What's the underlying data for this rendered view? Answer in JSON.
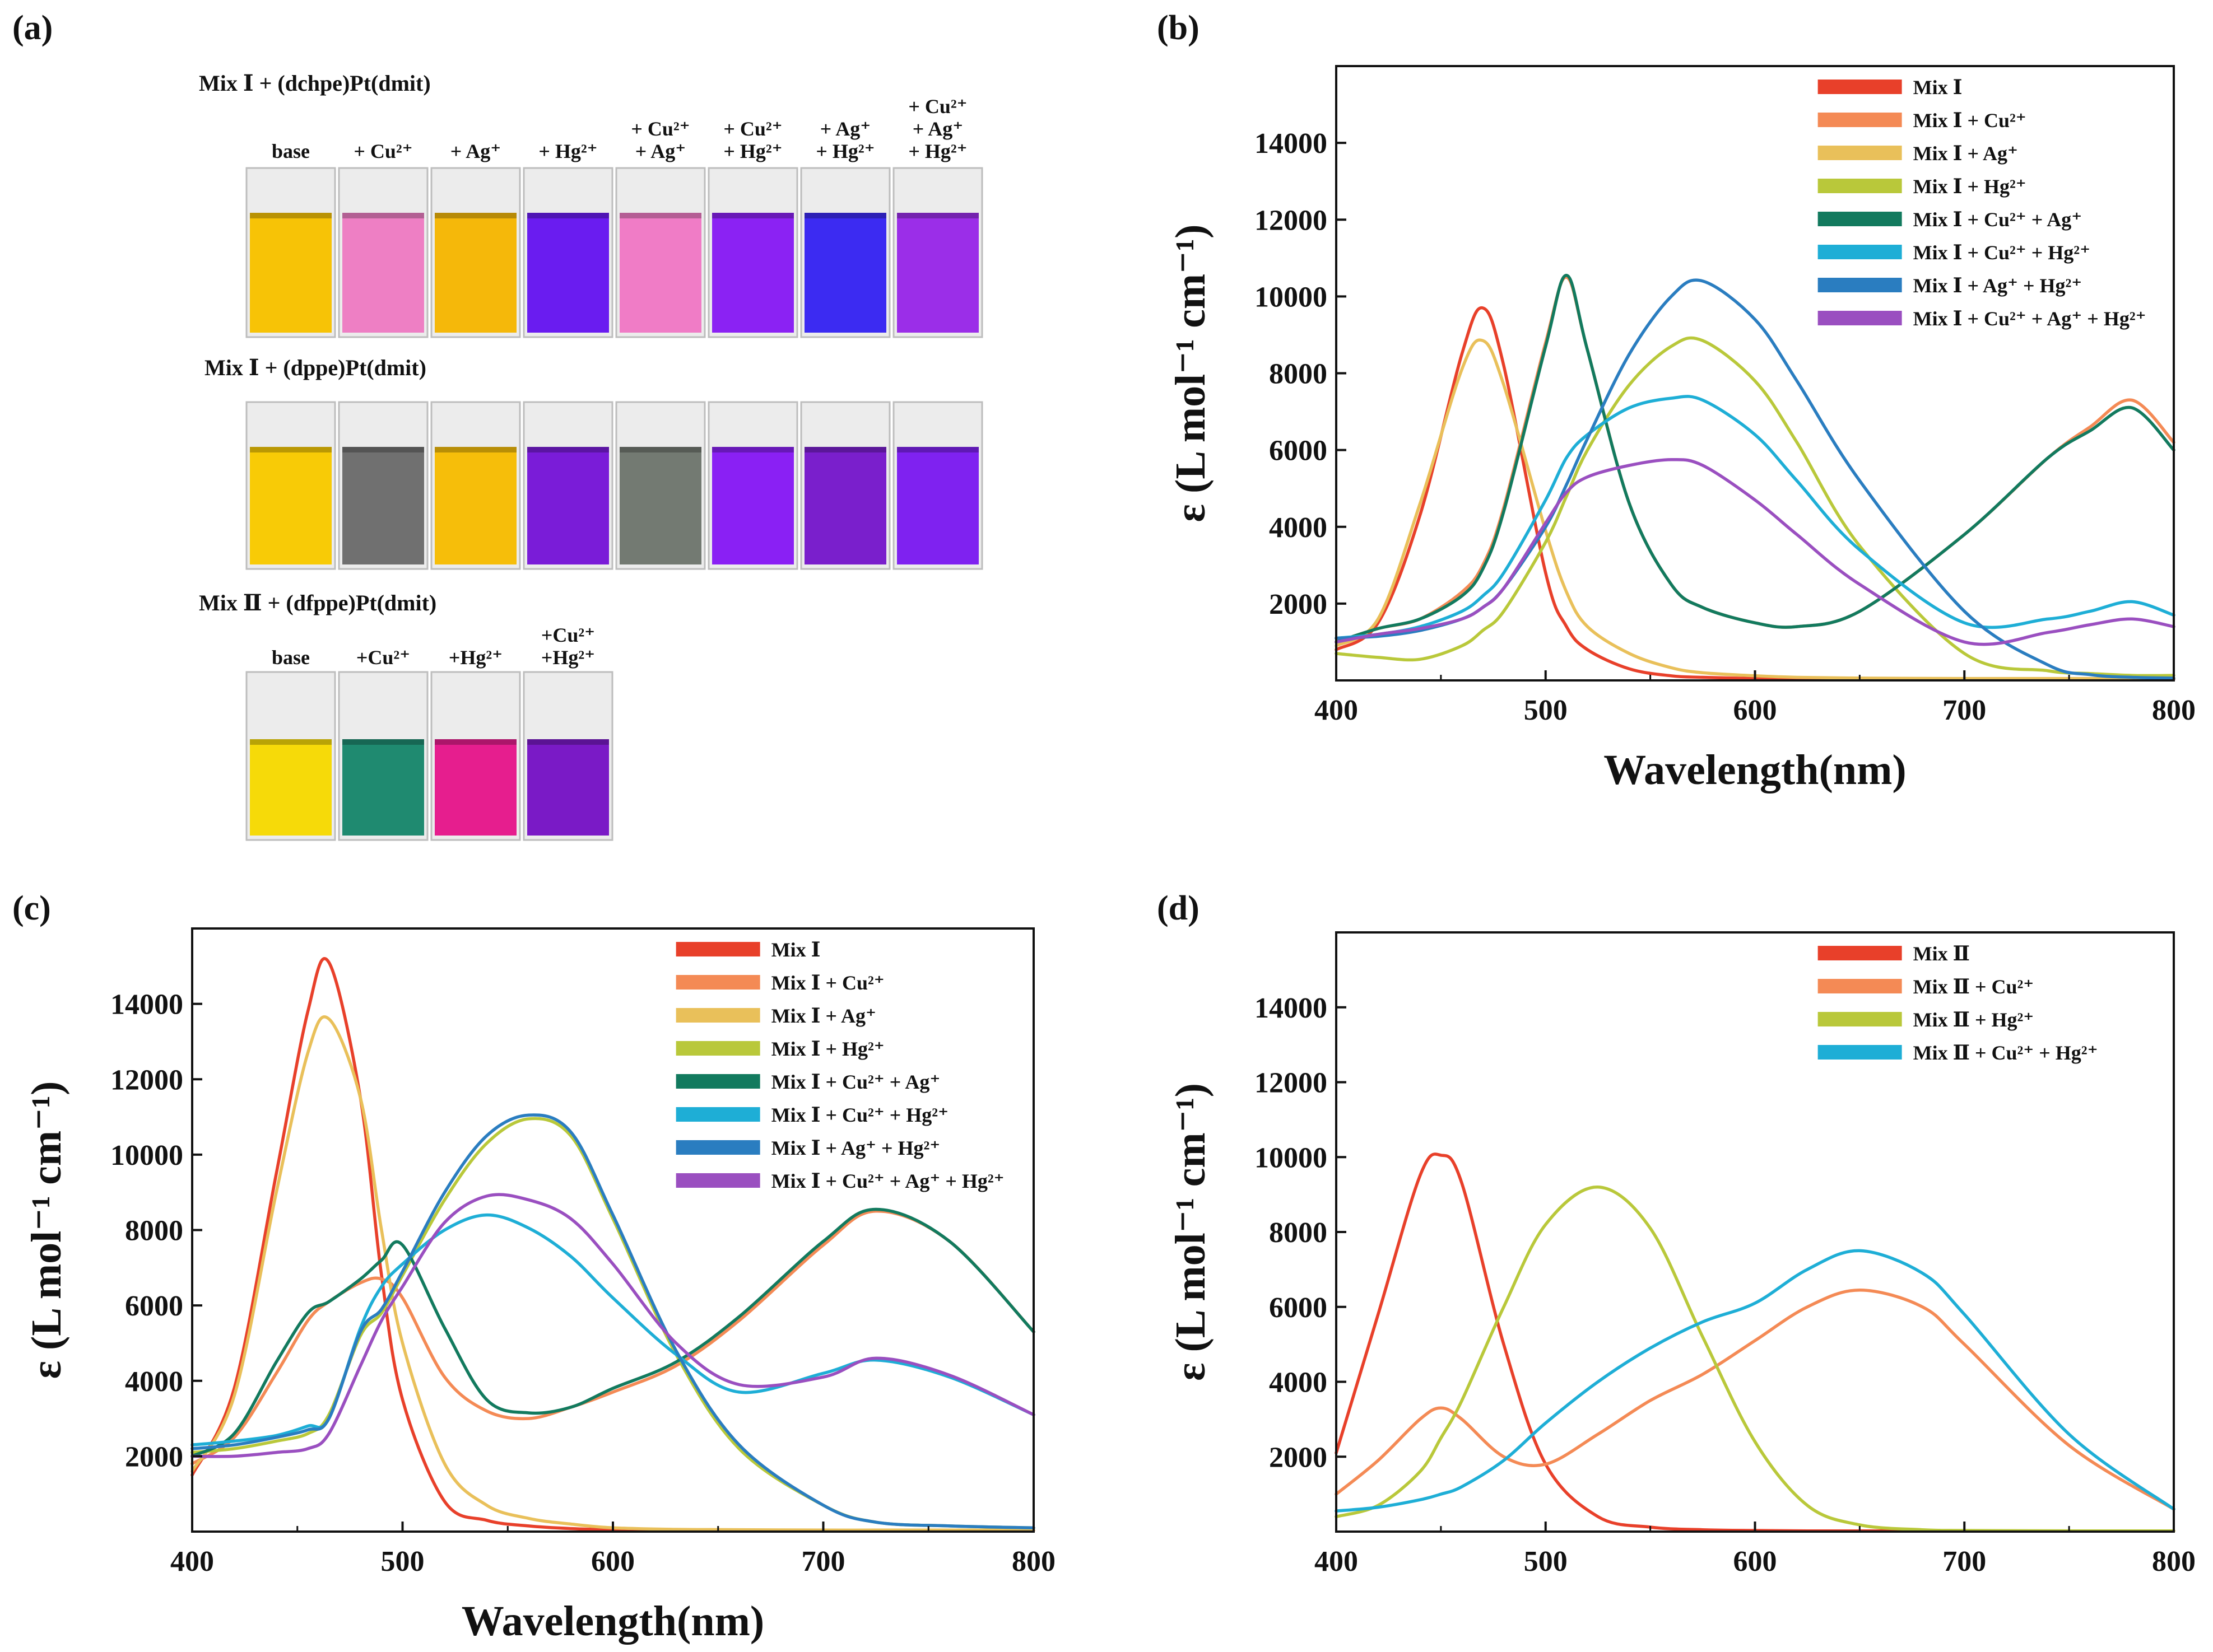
{
  "panel_labels": {
    "a": "(a)",
    "b": "(b)",
    "c": "(c)",
    "d": "(d)"
  },
  "photo": {
    "rows": [
      {
        "heading": "Mix Ⅰ + (dchpe)Pt(dmit)",
        "labels": [
          [
            "base"
          ],
          [
            "+ Cu²⁺"
          ],
          [
            "+ Ag⁺"
          ],
          [
            "+ Hg²⁺"
          ],
          [
            "+ Cu²⁺",
            "+ Ag⁺"
          ],
          [
            "+ Cu²⁺",
            "+ Hg²⁺"
          ],
          [
            "+ Ag⁺",
            "+ Hg²⁺"
          ],
          [
            "+ Cu²⁺",
            "+ Ag⁺",
            "+ Hg²⁺"
          ]
        ],
        "colors": [
          "#F7C306",
          "#EE7FC4",
          "#F5B80A",
          "#6A1CF0",
          "#F07CC6",
          "#8B22F3",
          "#3C2BF2",
          "#9B2EE8"
        ]
      },
      {
        "heading": "Mix Ⅰ + (dppe)Pt(dmit)",
        "labels": [],
        "colors": [
          "#F8CB06",
          "#707070",
          "#F6BE0A",
          "#7A1CD8",
          "#737A72",
          "#8A20F4",
          "#7A1FCC",
          "#7F22F0"
        ]
      },
      {
        "heading": "Mix Ⅱ + (dfppe)Pt(dmit)",
        "labels": [
          [
            "base"
          ],
          [
            "+Cu²⁺"
          ],
          [
            "+Hg²⁺"
          ],
          [
            "+Cu²⁺",
            "+Hg²⁺"
          ]
        ],
        "colors": [
          "#F6DA09",
          "#1F8A70",
          "#E61E8E",
          "#7A1AC6"
        ]
      }
    ]
  },
  "axes": {
    "xlabel": "Wavelength(nm)",
    "ylabel": "ε (L mol⁻¹ cm⁻¹)",
    "xticks": [
      "400",
      "500",
      "600",
      "700",
      "800"
    ],
    "yticks": [
      "2000",
      "4000",
      "6000",
      "8000",
      "10000",
      "12000",
      "14000"
    ]
  },
  "chart_data": [
    {
      "panel": "(b)",
      "type": "line",
      "xlabel": "Wavelength(nm)",
      "ylabel": "ε (L mol⁻¹ cm⁻¹)",
      "xlim": [
        400,
        800
      ],
      "ylim": [
        0,
        16000
      ],
      "legend_position": "top-right",
      "x": [
        400,
        420,
        440,
        460,
        470,
        480,
        500,
        510,
        520,
        540,
        560,
        575,
        600,
        620,
        650,
        700,
        740,
        760,
        780,
        800
      ],
      "series": [
        {
          "name": "Mix Ⅰ",
          "color": "#E8402A",
          "values": [
            800,
            1500,
            4300,
            8500,
            9700,
            8200,
            2800,
            1400,
            800,
            300,
            120,
            80,
            50,
            40,
            30,
            30,
            30,
            30,
            30,
            30
          ]
        },
        {
          "name": "Mix Ⅰ + Cu²⁺",
          "color": "#F48A55",
          "values": [
            1000,
            1350,
            1600,
            2300,
            3000,
            4500,
            8800,
            10500,
            8600,
            4600,
            2500,
            1900,
            1500,
            1400,
            1800,
            3800,
            5800,
            6600,
            7300,
            6200
          ]
        },
        {
          "name": "Mix Ⅰ + Ag⁺",
          "color": "#E9C05A",
          "values": [
            900,
            1600,
            4600,
            8100,
            8850,
            7700,
            3900,
            2300,
            1400,
            700,
            330,
            200,
            120,
            80,
            60,
            50,
            50,
            50,
            50,
            50
          ]
        },
        {
          "name": "Mix Ⅰ + Hg²⁺",
          "color": "#B9C83A",
          "values": [
            700,
            600,
            550,
            900,
            1300,
            1800,
            3600,
            4800,
            6000,
            7700,
            8700,
            8850,
            7800,
            6200,
            3500,
            700,
            250,
            180,
            130,
            130
          ]
        },
        {
          "name": "Mix Ⅰ + Cu²⁺ + Ag⁺",
          "color": "#127A5E",
          "values": [
            1000,
            1350,
            1600,
            2200,
            2900,
            4400,
            8700,
            10550,
            8600,
            4600,
            2500,
            1900,
            1500,
            1400,
            1800,
            3800,
            5800,
            6500,
            7100,
            6000
          ]
        },
        {
          "name": "Mix Ⅰ + Cu²⁺ + Hg²⁺",
          "color": "#1EAED6",
          "values": [
            1100,
            1200,
            1400,
            1800,
            2200,
            2800,
            4700,
            5800,
            6400,
            7100,
            7350,
            7300,
            6400,
            5200,
            3400,
            1500,
            1600,
            1800,
            2050,
            1700
          ]
        },
        {
          "name": "Mix Ⅰ + Ag⁺ + Hg²⁺",
          "color": "#2A7DC0",
          "values": [
            1100,
            1150,
            1300,
            1600,
            1900,
            2400,
            4000,
            5100,
            6300,
            8500,
            10000,
            10400,
            9400,
            7800,
            5200,
            1800,
            400,
            150,
            80,
            60
          ]
        },
        {
          "name": "Mix Ⅰ + Cu²⁺ + Ag⁺ + Hg²⁺",
          "color": "#9A4FC0",
          "values": [
            1000,
            1200,
            1350,
            1600,
            1900,
            2400,
            4100,
            4900,
            5300,
            5600,
            5750,
            5600,
            4700,
            3800,
            2500,
            1000,
            1250,
            1450,
            1600,
            1400
          ]
        }
      ]
    },
    {
      "panel": "(c)",
      "type": "line",
      "xlabel": "Wavelength(nm)",
      "ylabel": "ε (L mol⁻¹ cm⁻¹)",
      "xlim": [
        400,
        800
      ],
      "ylim": [
        0,
        16000
      ],
      "legend_position": "top-right",
      "x": [
        400,
        420,
        440,
        455,
        465,
        480,
        490,
        500,
        520,
        540,
        560,
        580,
        600,
        630,
        660,
        700,
        725,
        760,
        800
      ],
      "series": [
        {
          "name": "Mix Ⅰ",
          "color": "#E8402A",
          "values": [
            1500,
            3800,
            9500,
            13800,
            15100,
            11500,
            6800,
            3500,
            800,
            300,
            150,
            80,
            50,
            30,
            30,
            30,
            30,
            30,
            30
          ]
        },
        {
          "name": "Mix Ⅰ + Cu²⁺",
          "color": "#F48A55",
          "values": [
            1800,
            2500,
            4200,
            5600,
            6100,
            6600,
            6700,
            6200,
            4100,
            3200,
            3000,
            3300,
            3700,
            4400,
            5600,
            7600,
            8500,
            7700,
            5300
          ]
        },
        {
          "name": "Mix Ⅰ + Ag⁺",
          "color": "#E9C05A",
          "values": [
            1600,
            3600,
            9000,
            12700,
            13600,
            11500,
            8000,
            5000,
            1800,
            700,
            350,
            200,
            100,
            60,
            50,
            40,
            40,
            40,
            40
          ]
        },
        {
          "name": "Mix Ⅰ + Hg²⁺",
          "color": "#B9C83A",
          "values": [
            2100,
            2200,
            2400,
            2600,
            3100,
            5200,
            5800,
            6800,
            8800,
            10300,
            10950,
            10500,
            8300,
            4700,
            2200,
            700,
            250,
            150,
            100
          ]
        },
        {
          "name": "Mix Ⅰ + Cu²⁺ + Ag⁺",
          "color": "#127A5E",
          "values": [
            2000,
            2600,
            4500,
            5800,
            6100,
            6700,
            7200,
            7600,
            5400,
            3500,
            3150,
            3300,
            3800,
            4500,
            5700,
            7700,
            8550,
            7700,
            5300
          ]
        },
        {
          "name": "Mix Ⅰ + Cu²⁺ + Hg²⁺",
          "color": "#1EAED6",
          "values": [
            2300,
            2400,
            2550,
            2800,
            3000,
            5400,
            6500,
            7100,
            8000,
            8400,
            8050,
            7300,
            6200,
            4700,
            3700,
            4200,
            4550,
            4100,
            3100
          ]
        },
        {
          "name": "Mix Ⅰ + Ag⁺ + Hg²⁺",
          "color": "#2A7DC0",
          "values": [
            2200,
            2300,
            2500,
            2700,
            3000,
            5300,
            5900,
            6900,
            9000,
            10500,
            11050,
            10600,
            8400,
            4800,
            2300,
            700,
            250,
            150,
            100
          ]
        },
        {
          "name": "Mix Ⅰ + Cu²⁺ + Ag⁺ + Hg²⁺",
          "color": "#9A4FC0",
          "values": [
            2000,
            2000,
            2100,
            2200,
            2600,
            4400,
            5600,
            6500,
            8200,
            8900,
            8800,
            8300,
            7100,
            5000,
            3900,
            4100,
            4600,
            4150,
            3100
          ]
        }
      ]
    },
    {
      "panel": "(d)",
      "type": "line",
      "xlabel": "",
      "ylabel": "ε (L mol⁻¹ cm⁻¹)",
      "xlim": [
        400,
        800
      ],
      "ylim": [
        0,
        16000
      ],
      "legend_position": "top-right",
      "x": [
        400,
        420,
        440,
        450,
        460,
        480,
        500,
        525,
        550,
        575,
        600,
        625,
        650,
        680,
        700,
        750,
        800
      ],
      "series": [
        {
          "name": "Mix Ⅱ",
          "color": "#E8402A",
          "values": [
            2100,
            5800,
            9500,
            10050,
            9300,
            5000,
            1800,
            400,
            120,
            50,
            30,
            20,
            20,
            20,
            20,
            20,
            20
          ]
        },
        {
          "name": "Mix Ⅱ + Cu²⁺",
          "color": "#F48A55",
          "values": [
            1000,
            1900,
            3000,
            3300,
            3000,
            2000,
            1800,
            2600,
            3500,
            4200,
            5100,
            6000,
            6450,
            6000,
            5000,
            2300,
            600
          ]
        },
        {
          "name": "Mix Ⅱ + Hg²⁺",
          "color": "#B9C83A",
          "values": [
            400,
            700,
            1600,
            2500,
            3500,
            6000,
            8200,
            9200,
            8100,
            5200,
            2400,
            700,
            180,
            50,
            30,
            20,
            20
          ]
        },
        {
          "name": "Mix Ⅱ + Cu²⁺ + Hg²⁺",
          "color": "#1EAED6",
          "values": [
            550,
            650,
            850,
            1000,
            1200,
            1900,
            2900,
            4000,
            4900,
            5600,
            6100,
            7000,
            7500,
            6900,
            5800,
            2600,
            600
          ]
        }
      ]
    }
  ]
}
